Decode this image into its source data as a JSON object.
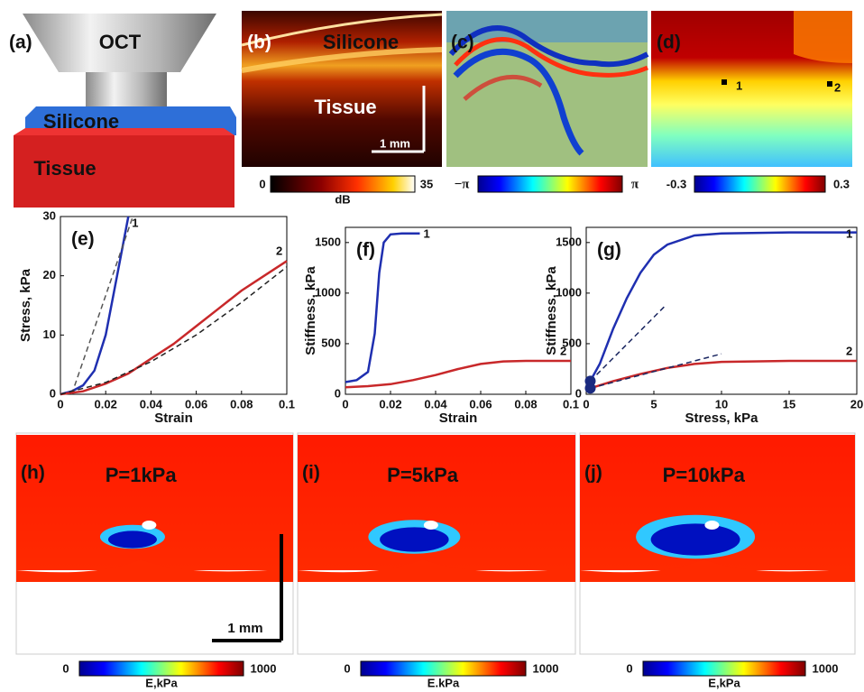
{
  "figure": {
    "a": {
      "label": "(a)",
      "oct": "OCT",
      "silicone": "Silicone",
      "tissue": "Tissue"
    },
    "b": {
      "label": "(b)",
      "silicone": "Silicone",
      "tissue": "Tissue",
      "scale": "1 mm",
      "cbar_min": 0,
      "cbar_max": 35,
      "cbar_unit": "dB"
    },
    "c": {
      "label": "(c)",
      "cbar_min": "−π",
      "cbar_max": "π"
    },
    "d": {
      "label": "(d)",
      "point1": "1",
      "point2": "2",
      "cbar_min": -0.3,
      "cbar_max": 0.3
    },
    "h": {
      "label": "(h)",
      "pressure": "P=1kPa",
      "scale": "1 mm",
      "cbar_min": 0,
      "cbar_max": 1000,
      "cbar_unit": "E,kPa"
    },
    "i": {
      "label": "(i)",
      "pressure": "P=5kPa",
      "cbar_min": 0,
      "cbar_max": 1000,
      "cbar_unit": "E.kPa"
    },
    "j": {
      "label": "(j)",
      "pressure": "P=10kPa",
      "cbar_min": 0,
      "cbar_max": 1000,
      "cbar_unit": "E,kPa"
    }
  },
  "chart_data": [
    {
      "type": "line",
      "panel_label": "(e)",
      "xlabel": "Strain",
      "ylabel": "Stress, kPa",
      "xlim": [
        0,
        0.1
      ],
      "ylim": [
        0,
        30
      ],
      "xticks": [
        0,
        0.02,
        0.04,
        0.06,
        0.08,
        0.1
      ],
      "yticks": [
        0,
        10,
        20,
        30
      ],
      "series": [
        {
          "name": "1",
          "color": "#1f2fb0",
          "x": [
            0,
            0.005,
            0.01,
            0.015,
            0.02,
            0.025,
            0.03
          ],
          "values": [
            0,
            0.5,
            1.5,
            4,
            10,
            20,
            30
          ]
        },
        {
          "color": "#555555",
          "dashed": true,
          "x": [
            0.005,
            0.032
          ],
          "values": [
            0,
            30
          ]
        },
        {
          "name": "2",
          "color": "#c8282a",
          "x": [
            0,
            0.01,
            0.02,
            0.03,
            0.04,
            0.05,
            0.06,
            0.07,
            0.08,
            0.09,
            0.1
          ],
          "values": [
            0,
            0.5,
            1.8,
            3.5,
            6,
            8.5,
            11.5,
            14.5,
            17.5,
            20,
            22.5
          ]
        },
        {
          "color": "#222222",
          "dashed": true,
          "x": [
            0,
            0.02,
            0.04,
            0.06,
            0.08,
            0.1
          ],
          "values": [
            0,
            2,
            5.5,
            10,
            15.5,
            21.5
          ]
        }
      ]
    },
    {
      "type": "line",
      "panel_label": "(f)",
      "xlabel": "Strain",
      "ylabel": "Stiffness, kPa",
      "xlim": [
        0,
        0.1
      ],
      "ylim": [
        0,
        1650
      ],
      "xticks": [
        0,
        0.02,
        0.04,
        0.06,
        0.08,
        0.1
      ],
      "yticks": [
        0,
        500,
        1000,
        1500
      ],
      "series": [
        {
          "name": "1",
          "color": "#1f2fb0",
          "x": [
            0,
            0.005,
            0.01,
            0.013,
            0.015,
            0.017,
            0.02,
            0.025,
            0.03,
            0.033
          ],
          "values": [
            120,
            140,
            220,
            600,
            1200,
            1500,
            1580,
            1590,
            1590,
            1590
          ]
        },
        {
          "name": "2",
          "color": "#c8282a",
          "x": [
            0,
            0.01,
            0.02,
            0.03,
            0.04,
            0.05,
            0.06,
            0.07,
            0.08,
            0.09,
            0.1
          ],
          "values": [
            70,
            80,
            100,
            140,
            190,
            250,
            300,
            325,
            330,
            330,
            330
          ]
        }
      ]
    },
    {
      "type": "line",
      "panel_label": "(g)",
      "xlabel": "Stress, kPa",
      "ylabel": "Stiffness, kPa",
      "xlim": [
        0,
        20
      ],
      "ylim": [
        0,
        1650
      ],
      "xticks": [
        0,
        5,
        10,
        15,
        20
      ],
      "yticks": [
        0,
        500,
        1000,
        1500
      ],
      "series": [
        {
          "name": "1",
          "color": "#1f2fb0",
          "x": [
            0.3,
            1,
            2,
            3,
            4,
            5,
            6,
            8,
            10,
            15,
            20
          ],
          "values": [
            130,
            300,
            650,
            950,
            1200,
            1380,
            1480,
            1570,
            1590,
            1600,
            1600
          ]
        },
        {
          "color": "#1a2660",
          "dashed": true,
          "x": [
            0.3,
            5.8
          ],
          "values": [
            130,
            870
          ]
        },
        {
          "name": "2",
          "color": "#c8282a",
          "x": [
            0.3,
            2,
            4,
            6,
            8,
            10,
            15,
            20
          ],
          "values": [
            60,
            130,
            200,
            260,
            300,
            320,
            330,
            330
          ]
        },
        {
          "color": "#1a2660",
          "dashed": true,
          "x": [
            0.3,
            10
          ],
          "values": [
            60,
            400
          ]
        },
        {
          "color": "#1a2a80",
          "dots": true,
          "x": [
            0.3,
            0.3
          ],
          "values": [
            130,
            60
          ]
        }
      ]
    }
  ]
}
